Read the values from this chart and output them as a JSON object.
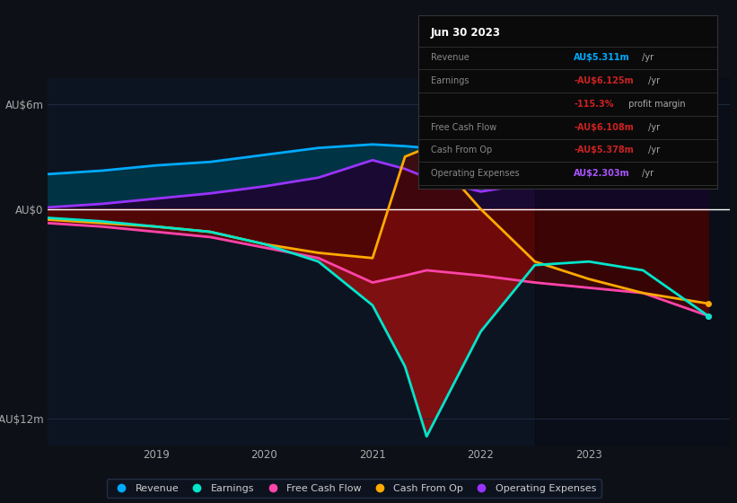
{
  "bg_color": "#0d1117",
  "plot_bg_color": "#0d1421",
  "title_date": "Jun 30 2023",
  "ylim": [
    -13.5,
    7.5
  ],
  "yticks": [
    -12,
    0,
    6
  ],
  "ytick_labels": [
    "-AU$12m",
    "AU$0",
    "AU$6m"
  ],
  "xlim": [
    2018.0,
    2024.3
  ],
  "xticks": [
    2019,
    2020,
    2021,
    2022,
    2023
  ],
  "series": {
    "Revenue": {
      "color": "#00aaff",
      "linewidth": 2.0,
      "x": [
        2018.0,
        2018.5,
        2019.0,
        2019.5,
        2020.0,
        2020.5,
        2021.0,
        2021.3,
        2021.5,
        2022.0,
        2022.5,
        2023.0,
        2023.5,
        2024.1
      ],
      "y": [
        2.0,
        2.2,
        2.5,
        2.7,
        3.1,
        3.5,
        3.7,
        3.6,
        3.5,
        3.6,
        3.9,
        4.3,
        4.9,
        5.3
      ]
    },
    "Earnings": {
      "color": "#00e5cc",
      "linewidth": 2.0,
      "x": [
        2018.0,
        2018.5,
        2019.0,
        2019.5,
        2020.0,
        2020.5,
        2021.0,
        2021.3,
        2021.5,
        2022.0,
        2022.5,
        2023.0,
        2023.5,
        2024.1
      ],
      "y": [
        -0.5,
        -0.7,
        -1.0,
        -1.3,
        -2.0,
        -3.0,
        -5.5,
        -9.0,
        -13.0,
        -7.0,
        -3.2,
        -3.0,
        -3.5,
        -6.1
      ]
    },
    "FreeCashFlow": {
      "color": "#ff44aa",
      "linewidth": 2.0,
      "x": [
        2018.0,
        2018.5,
        2019.0,
        2019.5,
        2020.0,
        2020.5,
        2021.0,
        2021.3,
        2021.5,
        2022.0,
        2022.5,
        2023.0,
        2023.5,
        2024.1
      ],
      "y": [
        -0.8,
        -1.0,
        -1.3,
        -1.6,
        -2.2,
        -2.8,
        -4.2,
        -3.8,
        -3.5,
        -3.8,
        -4.2,
        -4.5,
        -4.8,
        -6.1
      ]
    },
    "CashFromOp": {
      "color": "#ffaa00",
      "linewidth": 2.0,
      "x": [
        2018.0,
        2018.5,
        2019.0,
        2019.5,
        2020.0,
        2020.5,
        2021.0,
        2021.3,
        2021.5,
        2022.0,
        2022.5,
        2023.0,
        2023.5,
        2024.1
      ],
      "y": [
        -0.6,
        -0.8,
        -1.0,
        -1.3,
        -2.0,
        -2.5,
        -2.8,
        3.0,
        3.5,
        0.0,
        -3.0,
        -4.0,
        -4.8,
        -5.4
      ]
    },
    "OperatingExpenses": {
      "color": "#9933ff",
      "linewidth": 2.0,
      "x": [
        2018.0,
        2018.5,
        2019.0,
        2019.5,
        2020.0,
        2020.5,
        2021.0,
        2021.3,
        2021.5,
        2022.0,
        2022.5,
        2023.0,
        2023.5,
        2024.1
      ],
      "y": [
        0.1,
        0.3,
        0.6,
        0.9,
        1.3,
        1.8,
        2.8,
        2.3,
        1.8,
        1.0,
        1.5,
        2.0,
        2.2,
        2.3
      ]
    }
  },
  "highlight_x_start": 2022.5,
  "highlight_x_end": 2024.3,
  "grid_color": "#1e2a40",
  "zero_line_color": "#ffffff",
  "legend_entries": [
    {
      "label": "Revenue",
      "color": "#00aaff"
    },
    {
      "label": "Earnings",
      "color": "#00e5cc"
    },
    {
      "label": "Free Cash Flow",
      "color": "#ff44aa"
    },
    {
      "label": "Cash From Op",
      "color": "#ffaa00"
    },
    {
      "label": "Operating Expenses",
      "color": "#9933ff"
    }
  ],
  "info_box": {
    "title": "Jun 30 2023",
    "rows": [
      {
        "label": "Revenue",
        "value": "AU$5.311m",
        "suffix": " /yr",
        "value_color": "#00aaff",
        "suffix_color": "#aaaaaa"
      },
      {
        "label": "Earnings",
        "value": "-AU$6.125m",
        "suffix": " /yr",
        "value_color": "#cc2222",
        "suffix_color": "#aaaaaa"
      },
      {
        "label": "",
        "value": "-115.3%",
        "suffix": " profit margin",
        "value_color": "#cc2222",
        "suffix_color": "#aaaaaa"
      },
      {
        "label": "Free Cash Flow",
        "value": "-AU$6.108m",
        "suffix": " /yr",
        "value_color": "#cc2222",
        "suffix_color": "#aaaaaa"
      },
      {
        "label": "Cash From Op",
        "value": "-AU$5.378m",
        "suffix": " /yr",
        "value_color": "#cc2222",
        "suffix_color": "#aaaaaa"
      },
      {
        "label": "Operating Expenses",
        "value": "AU$2.303m",
        "suffix": " /yr",
        "value_color": "#aa55ff",
        "suffix_color": "#aaaaaa"
      }
    ]
  }
}
